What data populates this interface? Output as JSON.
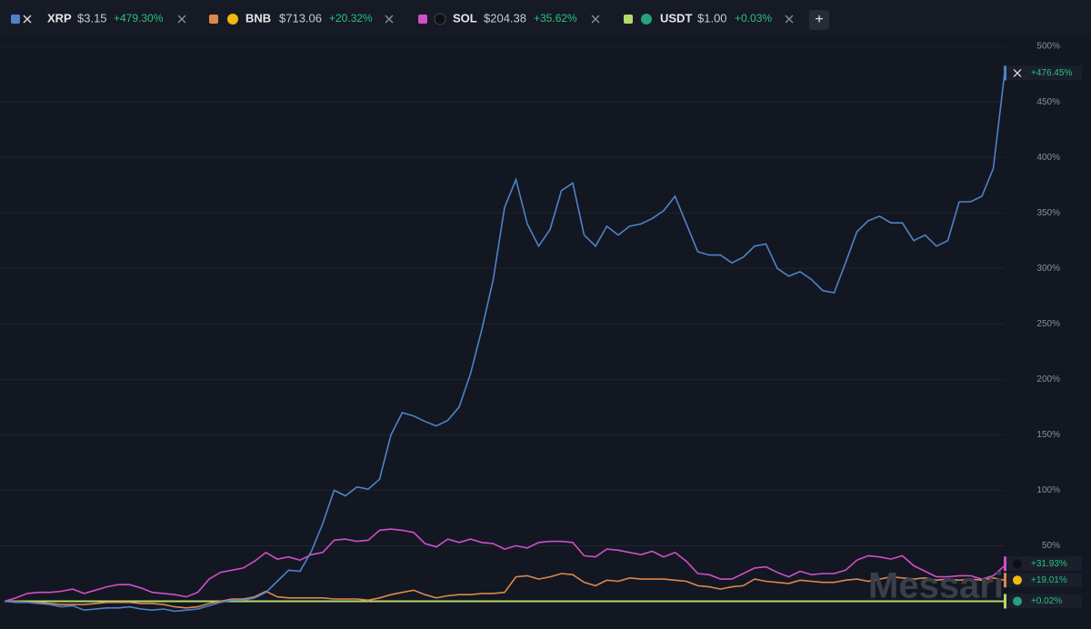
{
  "chart_data": {
    "type": "line",
    "categories": [
      null,
      null,
      null,
      null,
      null,
      null,
      null,
      null,
      null,
      null,
      null,
      null,
      null,
      null,
      null,
      null,
      null,
      null,
      null,
      null,
      null,
      null,
      null,
      null,
      null,
      null,
      null,
      null,
      null,
      null,
      null,
      null,
      null,
      null,
      null,
      null,
      null,
      null,
      null,
      null,
      null,
      null,
      null,
      null,
      null,
      null,
      null,
      null,
      null,
      null,
      null,
      null,
      null,
      null,
      null,
      null,
      null,
      null,
      null,
      null,
      null,
      null,
      null,
      null,
      null,
      null,
      null,
      null,
      null,
      null,
      null,
      null,
      null,
      null,
      null,
      null,
      null,
      null,
      null,
      null,
      null,
      null,
      null,
      null,
      null,
      null,
      null,
      null,
      null
    ],
    "series": [
      {
        "name": "XRP",
        "price": "$3.15",
        "change": "+479.30%",
        "end_label": "+476.45%",
        "color": "#4f82c9",
        "values": [
          0,
          -1,
          -1,
          -2,
          -3,
          -5,
          -4,
          -8,
          -7,
          -6,
          -6,
          -5,
          -7,
          -8,
          -7,
          -9,
          -8,
          -7,
          -4,
          -1,
          1,
          1,
          3,
          8,
          18,
          28,
          27,
          45,
          70,
          100,
          95,
          103,
          101,
          110,
          150,
          170,
          167,
          162,
          158,
          163,
          175,
          205,
          245,
          290,
          355,
          380,
          340,
          320,
          335,
          370,
          377,
          330,
          320,
          338,
          330,
          338,
          340,
          345,
          352,
          365,
          340,
          315,
          312,
          312,
          305,
          310,
          320,
          322,
          300,
          293,
          297,
          290,
          280,
          278,
          305,
          333,
          343,
          347,
          341,
          341,
          325,
          330,
          320,
          325,
          360,
          360,
          365,
          390,
          476
        ]
      },
      {
        "name": "BNB",
        "price": "$713.06",
        "change": "+20.32%",
        "end_label": "+19.01%",
        "color": "#d9894f",
        "values": [
          0,
          0,
          -1,
          -1,
          -2,
          -3,
          -3,
          -3,
          -2,
          -1,
          -1,
          -1,
          -2,
          -2,
          -3,
          -5,
          -6,
          -5,
          -2,
          0,
          2,
          2,
          4,
          9,
          4,
          3,
          3,
          3,
          3,
          2,
          2,
          2,
          1,
          3,
          6,
          8,
          10,
          6,
          3,
          5,
          6,
          6,
          7,
          7,
          8,
          22,
          23,
          20,
          22,
          25,
          24,
          17,
          14,
          19,
          18,
          21,
          20,
          20,
          20,
          19,
          18,
          14,
          13,
          11,
          13,
          14,
          20,
          18,
          17,
          16,
          19,
          18,
          17,
          17,
          19,
          20,
          18,
          20,
          22,
          21,
          20,
          21,
          19,
          20,
          19,
          20,
          19,
          21,
          19
        ]
      },
      {
        "name": "SOL",
        "price": "$204.38",
        "change": "+35.62%",
        "end_label": "+31.93%",
        "color": "#d14fc5",
        "values": [
          0,
          3,
          7,
          8,
          8,
          9,
          11,
          7,
          10,
          13,
          15,
          15,
          12,
          8,
          7,
          6,
          4,
          8,
          20,
          26,
          28,
          30,
          36,
          44,
          38,
          40,
          37,
          42,
          44,
          55,
          56,
          54,
          55,
          64,
          65,
          64,
          62,
          52,
          49,
          56,
          53,
          56,
          53,
          52,
          47,
          50,
          48,
          53,
          54,
          54,
          53,
          41,
          40,
          47,
          46,
          44,
          42,
          45,
          40,
          44,
          36,
          25,
          24,
          20,
          20,
          25,
          30,
          31,
          26,
          22,
          27,
          24,
          25,
          25,
          28,
          37,
          41,
          40,
          38,
          41,
          32,
          27,
          22,
          22,
          23,
          23,
          20,
          23,
          32
        ]
      },
      {
        "name": "USDT",
        "price": "$1.00",
        "change": "+0.03%",
        "end_label": "+0.02%",
        "color": "#b5d96b",
        "values": [
          0,
          0,
          0,
          0,
          0,
          0,
          0,
          0,
          0,
          0,
          0,
          0,
          0,
          0,
          0,
          0,
          0,
          0,
          0,
          0,
          0,
          0,
          0,
          0,
          0,
          0,
          0,
          0,
          0,
          0,
          0,
          0,
          0,
          0,
          0,
          0,
          0,
          0,
          0,
          0,
          0,
          0,
          0,
          0,
          0,
          0,
          0,
          0,
          0,
          0,
          0,
          0,
          0,
          0,
          0,
          0,
          0,
          0,
          0,
          0,
          0,
          0,
          0,
          0,
          0,
          0,
          0,
          0,
          0,
          0,
          0,
          0,
          0,
          0,
          0,
          0,
          0,
          0,
          0,
          0,
          0,
          0,
          0,
          0,
          0,
          0,
          0,
          0,
          0.02
        ]
      }
    ],
    "ylim": [
      -25,
      505
    ],
    "yticks": [
      {
        "value": 50,
        "label": "50%"
      },
      {
        "value": 100,
        "label": "100%"
      },
      {
        "value": 150,
        "label": "150%"
      },
      {
        "value": 200,
        "label": "200%"
      },
      {
        "value": 250,
        "label": "250%"
      },
      {
        "value": 300,
        "label": "300%"
      },
      {
        "value": 350,
        "label": "350%"
      },
      {
        "value": 400,
        "label": "400%"
      },
      {
        "value": 450,
        "label": "450%"
      },
      {
        "value": 500,
        "label": "500%"
      }
    ],
    "grid": true,
    "watermark": "Messari",
    "add_button": "+"
  }
}
